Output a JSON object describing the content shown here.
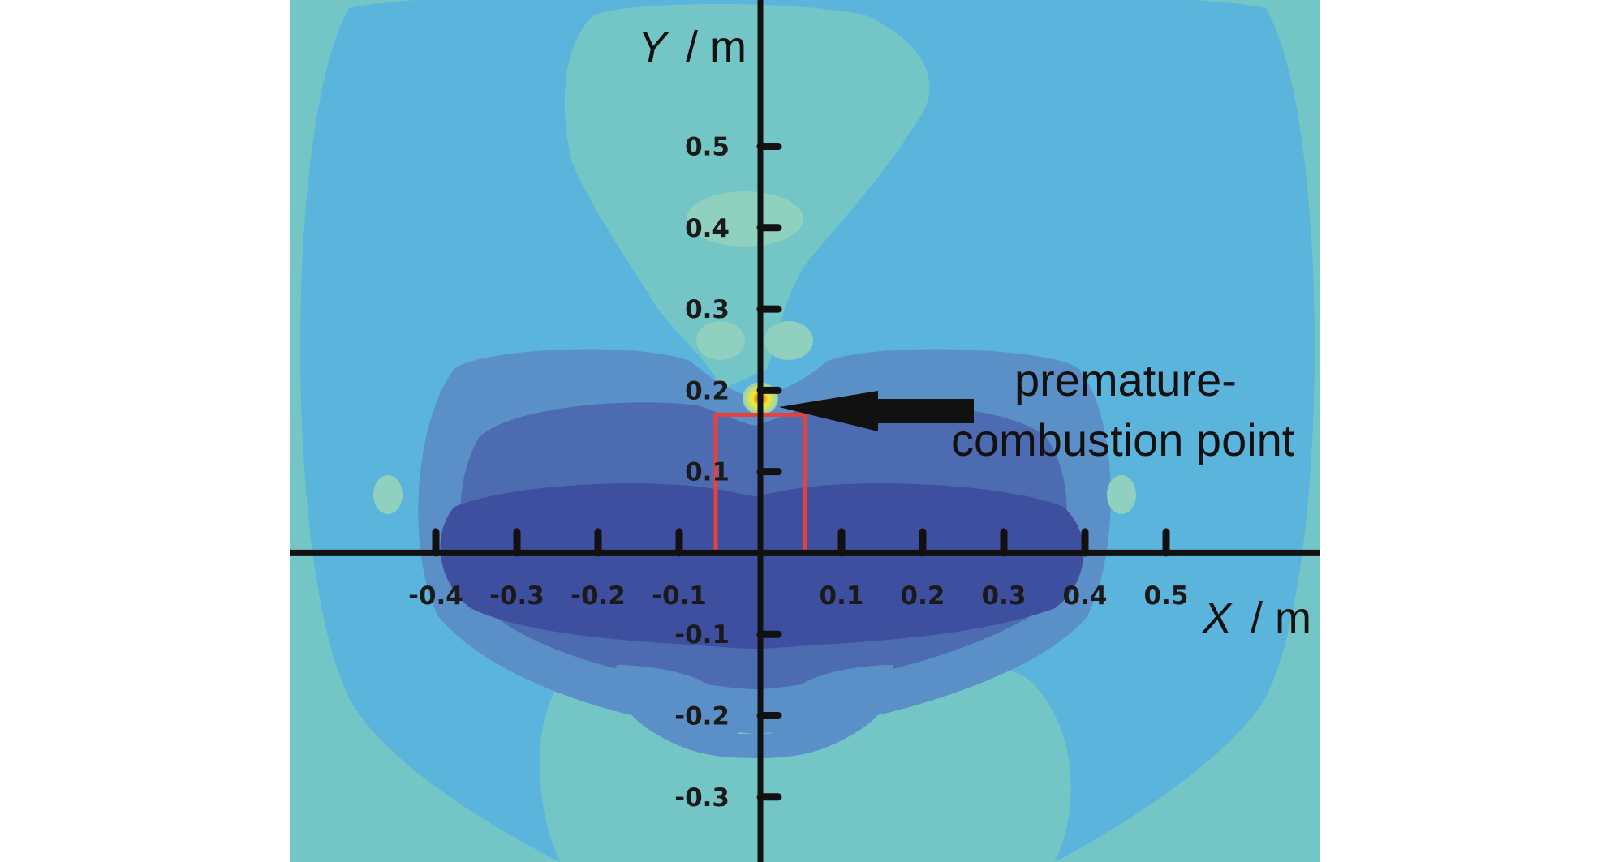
{
  "chart_data": {
    "type": "heatmap",
    "title": "",
    "xlabel": {
      "symbol": "X",
      "unit": "/ m"
    },
    "ylabel": {
      "symbol": "Y",
      "unit": "/ m"
    },
    "xlim": [
      -0.58,
      0.69
    ],
    "ylim": [
      -0.38,
      0.68
    ],
    "x_ticks": [
      {
        "value": -0.4,
        "label": "-0.4"
      },
      {
        "value": -0.3,
        "label": "-0.3"
      },
      {
        "value": -0.2,
        "label": "-0.2"
      },
      {
        "value": -0.1,
        "label": "-0.1"
      },
      {
        "value": 0.1,
        "label": "0.1"
      },
      {
        "value": 0.2,
        "label": "0.2"
      },
      {
        "value": 0.3,
        "label": "0.3"
      },
      {
        "value": 0.4,
        "label": "0.4"
      },
      {
        "value": 0.5,
        "label": "0.5"
      }
    ],
    "y_ticks": [
      {
        "value": 0.5,
        "label": "0.5"
      },
      {
        "value": 0.4,
        "label": "0.4"
      },
      {
        "value": 0.3,
        "label": "0.3"
      },
      {
        "value": 0.2,
        "label": "0.2"
      },
      {
        "value": 0.1,
        "label": "0.1"
      },
      {
        "value": -0.1,
        "label": "-0.1"
      },
      {
        "value": -0.2,
        "label": "-0.2"
      },
      {
        "value": -0.3,
        "label": "-0.3"
      }
    ],
    "burner_outline": {
      "x": [
        -0.055,
        0.055
      ],
      "y": [
        0,
        0.17
      ],
      "color": "#e8403a"
    },
    "hot_spot": {
      "x": 0.0,
      "y": 0.19
    },
    "annotation": {
      "lines": [
        "premature-",
        "combustion point"
      ],
      "points_to": {
        "x": 0.0,
        "y": 0.19
      }
    },
    "colors": {
      "level_1": "#74c6c6",
      "level_2": "#5ab4dc",
      "level_3": "#5b8fc7",
      "level_4": "#4d6bb0",
      "level_5": "#3f4f9f",
      "plume_light": "#8fd0bf",
      "hot_yellow": "#f6e82a",
      "hot_red": "#e33a1f",
      "axis": "#111111"
    },
    "grid": false,
    "legend": "none"
  }
}
